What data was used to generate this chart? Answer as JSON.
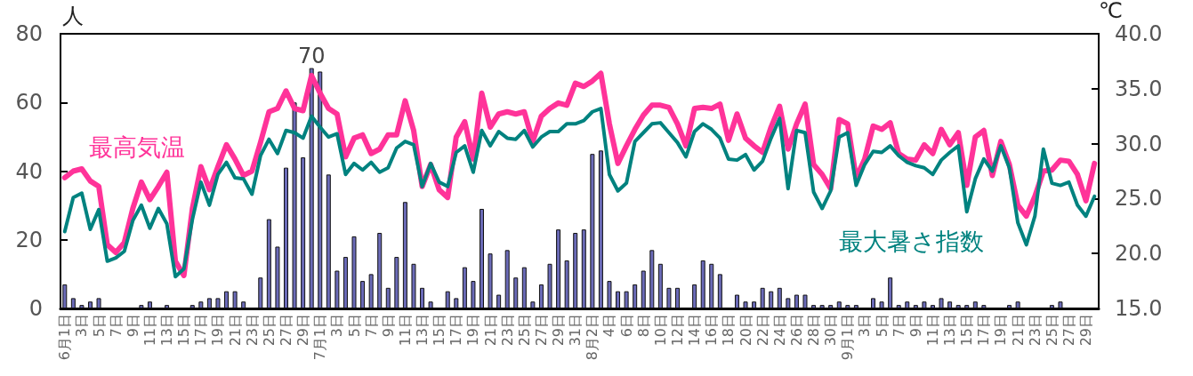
{
  "chart_data": {
    "type": "bar",
    "ylabel": "人",
    "y2label": "℃",
    "categories": [
      "6月1日",
      null,
      "3日",
      null,
      "5日",
      null,
      "7日",
      null,
      "9日",
      null,
      "11日",
      null,
      "13日",
      null,
      "15日",
      null,
      "17日",
      null,
      "19日",
      null,
      "21日",
      null,
      "23日",
      null,
      "25日",
      null,
      "27日",
      null,
      "29日",
      null,
      "7月1日",
      null,
      "3日",
      null,
      "5日",
      null,
      "7日",
      null,
      "9日",
      null,
      "11日",
      null,
      "13日",
      null,
      "15日",
      null,
      "17日",
      null,
      "19日",
      null,
      "21日",
      null,
      "23日",
      null,
      "25日",
      null,
      "27日",
      null,
      "29日",
      null,
      "31日",
      null,
      "8月2日",
      null,
      "4日",
      null,
      "6日",
      null,
      "8日",
      null,
      "10日",
      null,
      "12日",
      null,
      "14日",
      null,
      "16日",
      null,
      "18日",
      null,
      "20日",
      null,
      "22日",
      null,
      "24日",
      null,
      "26日",
      null,
      "28日",
      null,
      "30日",
      null,
      "9月1日",
      null,
      "3日",
      null,
      "5日",
      null,
      "7日",
      null,
      "9日",
      null,
      "11日",
      null,
      "13日",
      null,
      "15日",
      null,
      "17日",
      null,
      "19日",
      null,
      "21日",
      null,
      "23日",
      null,
      "25日",
      null,
      "27日",
      null,
      "29日",
      null
    ],
    "series": [
      {
        "color": "#6b6bb8",
        "values": [
          7,
          3,
          1,
          2,
          3,
          0,
          0,
          0,
          0,
          1,
          2,
          0,
          1,
          0,
          0,
          1,
          2,
          3,
          3,
          5,
          5,
          2,
          0,
          9,
          26,
          18,
          41,
          60,
          44,
          70,
          69,
          39,
          11,
          15,
          21,
          8,
          10,
          22,
          6,
          15,
          31,
          13,
          6,
          2,
          0,
          5,
          3,
          12,
          8,
          29,
          16,
          4,
          17,
          9,
          12,
          2,
          7,
          13,
          23,
          14,
          22,
          23,
          45,
          46,
          8,
          5,
          5,
          7,
          11,
          17,
          13,
          6,
          6,
          0,
          7,
          14,
          13,
          10,
          0,
          4,
          2,
          2,
          6,
          5,
          6,
          3,
          4,
          4,
          1,
          1,
          1,
          2,
          1,
          1,
          0,
          3,
          2,
          9,
          1,
          2,
          1,
          2,
          1,
          3,
          2,
          1,
          1,
          2,
          1,
          0,
          0,
          1,
          2,
          0,
          0,
          0,
          1,
          2,
          0,
          0,
          0,
          0
        ],
        "value_labels": [
          null,
          null,
          null,
          null,
          null,
          null,
          null,
          null,
          null,
          null,
          null,
          null,
          null,
          null,
          null,
          null,
          null,
          null,
          null,
          null,
          null,
          null,
          null,
          null,
          null,
          null,
          null,
          null,
          null,
          "70",
          null,
          null,
          null,
          null,
          null,
          null,
          null,
          null,
          null,
          null,
          null,
          null,
          null,
          null,
          null,
          null,
          null,
          null,
          null,
          null,
          null,
          null,
          null,
          null,
          null,
          null,
          null,
          null,
          null,
          null,
          null,
          null,
          null,
          null,
          null,
          null,
          null,
          null,
          null,
          null,
          null,
          null,
          null,
          null,
          null,
          null,
          null,
          null,
          null,
          null,
          null,
          null,
          null,
          null,
          null,
          null,
          null,
          null,
          null,
          null,
          null,
          null,
          null,
          null,
          null,
          null,
          null,
          null,
          null,
          null,
          null,
          null,
          null,
          null,
          null,
          null,
          null,
          null,
          null,
          null,
          null,
          null,
          null,
          null,
          null,
          null,
          null,
          null,
          null,
          null,
          null,
          null
        ]
      },
      {
        "type": "line",
        "axis": "y2",
        "name": "最高気温",
        "color": "#ff3399",
        "values": [
          26.9,
          27.5,
          27.7,
          26.6,
          26.1,
          20.8,
          20.1,
          21.0,
          24.1,
          26.5,
          24.9,
          26.1,
          27.4,
          19.3,
          18.0,
          24.1,
          27.9,
          25.8,
          27.9,
          29.9,
          28.6,
          27.1,
          27.5,
          30.1,
          32.9,
          33.2,
          34.8,
          33.2,
          33.0,
          36.2,
          34.6,
          33.2,
          32.7,
          28.8,
          30.5,
          30.8,
          29.1,
          29.5,
          30.8,
          30.8,
          33.9,
          31.2,
          26.1,
          28.1,
          25.8,
          25.1,
          30.6,
          32.0,
          28.6,
          34.6,
          31.5,
          32.7,
          32.9,
          32.7,
          32.9,
          30.2,
          32.5,
          33.2,
          33.7,
          33.5,
          35.5,
          35.2,
          35.7,
          36.4,
          31.8,
          28.2,
          29.8,
          31.3,
          32.6,
          33.5,
          33.5,
          33.3,
          31.8,
          29.8,
          33.2,
          33.3,
          33.2,
          33.6,
          30.3,
          32.7,
          30.5,
          29.8,
          29.2,
          31.5,
          33.4,
          29.5,
          31.8,
          33.6,
          28.1,
          27.2,
          25.9,
          32.2,
          31.8,
          26.9,
          28.6,
          31.6,
          31.3,
          31.9,
          29.1,
          28.6,
          28.5,
          29.9,
          29.1,
          31.3,
          29.9,
          31.0,
          26.2,
          30.6,
          31.2,
          27.1,
          30.2,
          28.1,
          24.4,
          23.4,
          25.2,
          27.5,
          27.6,
          28.5,
          28.4,
          27.2,
          24.8,
          28.2
        ]
      },
      {
        "type": "line",
        "axis": "y2",
        "name": "最大暑さ指数",
        "color": "#00827f",
        "values": [
          22.0,
          25.1,
          25.5,
          22.2,
          24.0,
          19.3,
          19.6,
          20.2,
          23.0,
          24.4,
          22.3,
          24.1,
          22.7,
          17.9,
          18.6,
          23.1,
          26.5,
          24.4,
          27.2,
          28.3,
          26.9,
          26.8,
          25.4,
          28.9,
          30.4,
          29.1,
          31.2,
          31.0,
          30.5,
          32.5,
          31.5,
          30.6,
          30.9,
          27.2,
          28.2,
          27.6,
          28.3,
          27.4,
          27.8,
          29.6,
          30.2,
          29.9,
          26.1,
          28.2,
          26.5,
          26.1,
          29.2,
          29.8,
          27.4,
          31.2,
          29.8,
          31.1,
          30.5,
          30.4,
          31.2,
          29.7,
          30.6,
          31.1,
          31.1,
          31.8,
          31.8,
          32.1,
          32.9,
          33.2,
          27.2,
          25.7,
          26.4,
          30.2,
          31.0,
          31.8,
          31.9,
          31.0,
          30.1,
          28.8,
          31.1,
          31.8,
          31.3,
          30.5,
          28.6,
          28.5,
          29.0,
          27.6,
          28.4,
          30.5,
          32.3,
          25.9,
          31.2,
          31.0,
          25.6,
          24.1,
          25.7,
          30.6,
          31.0,
          26.2,
          28.1,
          29.3,
          29.2,
          29.8,
          28.9,
          28.3,
          28.0,
          27.8,
          27.2,
          28.5,
          29.2,
          29.8,
          23.8,
          26.8,
          28.6,
          27.5,
          29.8,
          27.8,
          22.8,
          20.8,
          23.4,
          29.5,
          26.4,
          26.2,
          26.5,
          24.4,
          23.4,
          25.2
        ]
      }
    ],
    "ylim": [
      0,
      80
    ],
    "yticks": [
      0,
      20,
      40,
      60,
      80
    ],
    "y2lim": [
      15,
      40
    ],
    "y2ticks": [
      {
        "value": 15,
        "label": "15.0"
      },
      {
        "value": 20,
        "label": "20.0"
      },
      {
        "value": 25,
        "label": "25.0"
      },
      {
        "value": 30,
        "label": "30.0"
      },
      {
        "value": 35,
        "label": "35.0"
      },
      {
        "value": 40,
        "label": "40.0"
      }
    ],
    "grid": false,
    "legend": false,
    "marker": "none",
    "line_style": "solid"
  }
}
